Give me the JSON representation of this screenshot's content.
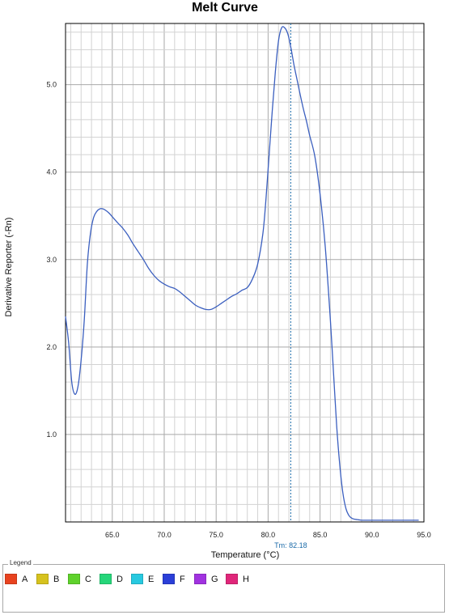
{
  "chart_data": {
    "type": "line",
    "title": "Melt Curve",
    "xlabel": "Temperature (°C)",
    "ylabel": "Derivative Reporter (-Rn)",
    "xlim": [
      60.5,
      95.0
    ],
    "ylim": [
      0.0,
      5.7
    ],
    "x_ticks": [
      "65.0",
      "70.0",
      "75.0",
      "80.0",
      "85.0",
      "90.0",
      "95.0"
    ],
    "y_ticks": [
      "1.0",
      "2.0",
      "3.0",
      "4.0",
      "5.0"
    ],
    "grid": true,
    "series": [
      {
        "color": "#3b5fbf",
        "x": [
          60.5,
          60.8,
          61.1,
          61.4,
          61.7,
          62.0,
          62.3,
          62.6,
          62.9,
          63.2,
          63.5,
          63.8,
          64.1,
          64.4,
          64.7,
          65.0,
          65.3,
          65.6,
          66.0,
          66.5,
          67.0,
          67.5,
          68.0,
          68.5,
          69.0,
          69.5,
          70.0,
          70.5,
          71.0,
          71.5,
          72.0,
          72.5,
          73.0,
          73.5,
          74.0,
          74.5,
          75.0,
          75.5,
          76.0,
          76.5,
          77.0,
          77.5,
          78.0,
          78.5,
          79.0,
          79.5,
          79.8,
          80.1,
          80.4,
          80.7,
          81.0,
          81.3,
          81.6,
          81.9,
          82.2,
          82.5,
          82.8,
          83.1,
          83.4,
          83.7,
          84.0,
          84.5,
          85.0,
          85.5,
          86.0,
          86.3,
          86.6,
          86.9,
          87.2,
          87.5,
          87.8,
          88.1,
          88.4,
          88.7,
          89.0,
          89.3,
          89.6,
          90.0,
          90.5,
          91.0,
          91.5,
          92.0,
          93.0,
          94.0,
          94.5
        ],
        "values": [
          2.35,
          2.05,
          1.6,
          1.46,
          1.55,
          1.85,
          2.3,
          2.95,
          3.3,
          3.48,
          3.55,
          3.58,
          3.58,
          3.56,
          3.53,
          3.49,
          3.45,
          3.41,
          3.36,
          3.28,
          3.18,
          3.09,
          3.0,
          2.9,
          2.82,
          2.76,
          2.72,
          2.69,
          2.67,
          2.63,
          2.58,
          2.53,
          2.48,
          2.45,
          2.43,
          2.43,
          2.46,
          2.5,
          2.54,
          2.58,
          2.61,
          2.65,
          2.68,
          2.78,
          2.95,
          3.3,
          3.7,
          4.2,
          4.7,
          5.15,
          5.5,
          5.65,
          5.65,
          5.58,
          5.42,
          5.22,
          5.05,
          4.88,
          4.72,
          4.58,
          4.42,
          4.18,
          3.75,
          3.15,
          2.3,
          1.7,
          1.1,
          0.65,
          0.33,
          0.15,
          0.07,
          0.04,
          0.03,
          0.025,
          0.02,
          0.02,
          0.02,
          0.02,
          0.02,
          0.02,
          0.02,
          0.02,
          0.02,
          0.02,
          0.02
        ]
      }
    ],
    "annotation": {
      "tm_value": 82.18,
      "label": "Tm: 82.18"
    },
    "legend": {
      "title": "Legend",
      "items": [
        {
          "label": "A",
          "color": "#e8421f"
        },
        {
          "label": "B",
          "color": "#d6c21e"
        },
        {
          "label": "C",
          "color": "#5fd22c"
        },
        {
          "label": "D",
          "color": "#26d67a"
        },
        {
          "label": "E",
          "color": "#28c9e0"
        },
        {
          "label": "F",
          "color": "#2b3fd8"
        },
        {
          "label": "G",
          "color": "#a132e0"
        },
        {
          "label": "H",
          "color": "#e0267a"
        }
      ]
    }
  }
}
